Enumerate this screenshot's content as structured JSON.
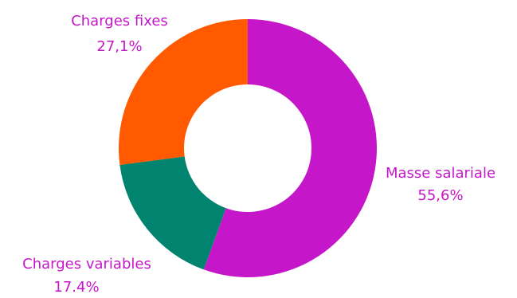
{
  "chart_data": {
    "type": "pie",
    "donut": true,
    "start_angle_deg": 0,
    "direction": "clockwise",
    "slices": [
      {
        "label": "Masse salariale",
        "value": 55.6,
        "value_label": "55,6%",
        "color": "#c517c9"
      },
      {
        "label": "Charges variables",
        "value": 17.4,
        "value_label": "17.4%",
        "color": "#00836f"
      },
      {
        "label": "Charges fixes",
        "value": 27.1,
        "value_label": "27,1%",
        "color": "#ff5a00"
      }
    ],
    "label_color": "#c517c9",
    "legend": "none"
  }
}
